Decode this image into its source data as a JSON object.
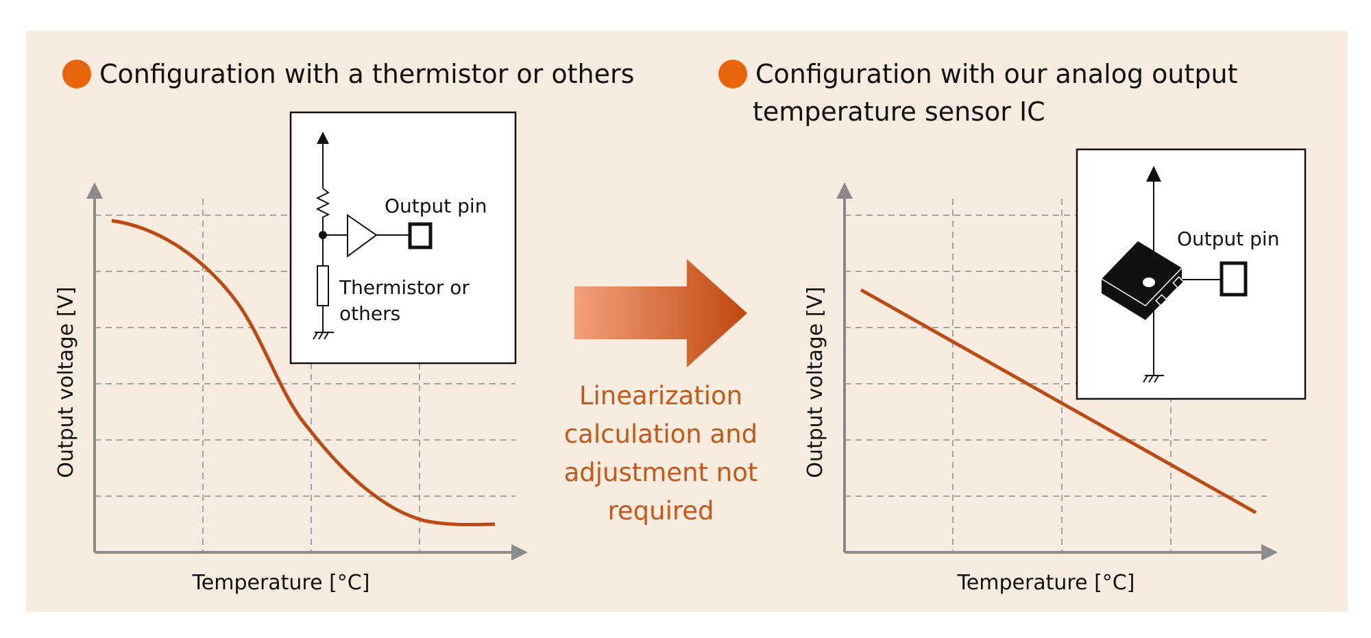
{
  "colors": {
    "panel_bg": "#f8ece1",
    "bullet": "#e8640b",
    "curve": "#bd4a12",
    "note_text": "#c35817",
    "axis": "#8b8b8b",
    "grid": "#a3a3a3",
    "arrow_light": "#f2a07b",
    "arrow_dark": "#c0480f"
  },
  "left_panel": {
    "heading": "Configuration with a thermistor or others",
    "graph": {
      "ylabel": "Output voltage [V]",
      "xlabel": "Temperature [°C]",
      "curve_shape": "decreasing S-curve (nonlinear)"
    },
    "inset": {
      "output_label": "Output pin",
      "component_label_line1": "Thermistor or",
      "component_label_line2": "others"
    }
  },
  "middle": {
    "arrow_icon": "right-arrow-icon",
    "note_lines": [
      "Linearization",
      "calculation and",
      "adjustment not",
      "required"
    ]
  },
  "right_panel": {
    "heading_line1": "Configuration with our analog output",
    "heading_line2": "temperature sensor IC",
    "graph": {
      "ylabel": "Output voltage [V]",
      "xlabel": "Temperature [°C]",
      "curve_shape": "decreasing straight line (linear)"
    },
    "inset": {
      "output_label": "Output pin",
      "chip_icon": "ic-chip-icon"
    }
  }
}
